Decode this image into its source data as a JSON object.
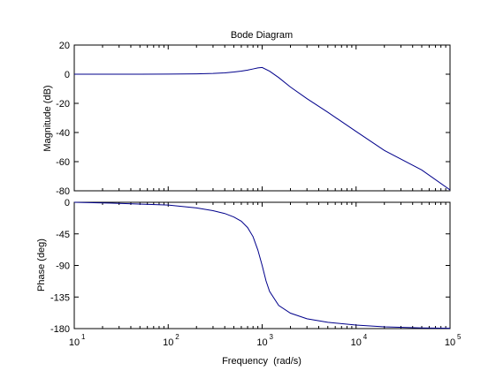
{
  "chart_data": [
    {
      "type": "line",
      "title": "Bode Diagram",
      "xlabel": "Frequency  (rad/s)",
      "ylabel": "Magnitude (dB)",
      "x_scale": "log",
      "xlim": [
        10,
        100000
      ],
      "ylim": [
        -80,
        20
      ],
      "y_ticks": [
        20,
        0,
        -20,
        -40,
        -60,
        -80
      ],
      "line_color": "#00008b",
      "series": [
        {
          "x": [
            10,
            50,
            100,
            200,
            300,
            400,
            500,
            600,
            700,
            800,
            900,
            1000,
            1200,
            1500,
            2000,
            3000,
            5000,
            10000,
            20000,
            50000,
            100000
          ],
          "y": [
            0,
            0,
            0.05,
            0.2,
            0.5,
            0.9,
            1.5,
            2.1,
            2.8,
            3.6,
            4.3,
            4.6,
            2.1,
            -2.3,
            -8.8,
            -16.8,
            -26.1,
            -39.3,
            -52.3,
            -65.7,
            -79.4
          ]
        }
      ]
    },
    {
      "type": "line",
      "xlabel": "Frequency  (rad/s)",
      "ylabel": "Phase (deg)",
      "x_scale": "log",
      "xlim": [
        10,
        100000
      ],
      "ylim": [
        -180,
        0
      ],
      "y_ticks": [
        0,
        -45,
        -90,
        -135,
        -180
      ],
      "x_ticks": [
        {
          "base": "10",
          "exp": "1"
        },
        {
          "base": "10",
          "exp": "2"
        },
        {
          "base": "10",
          "exp": "3"
        },
        {
          "base": "10",
          "exp": "4"
        },
        {
          "base": "10",
          "exp": "5"
        }
      ],
      "line_color": "#00008b",
      "series": [
        {
          "x": [
            10,
            30,
            100,
            200,
            300,
            400,
            500,
            600,
            700,
            800,
            900,
            1000,
            1100,
            1200,
            1500,
            2000,
            3000,
            5000,
            10000,
            20000,
            50000,
            100000
          ],
          "y": [
            0,
            -1.5,
            -4,
            -8,
            -12,
            -16,
            -21,
            -27,
            -36,
            -49,
            -68,
            -90,
            -112,
            -127,
            -147,
            -158,
            -166,
            -171,
            -175,
            -177.5,
            -179,
            -179.6
          ]
        }
      ]
    }
  ]
}
